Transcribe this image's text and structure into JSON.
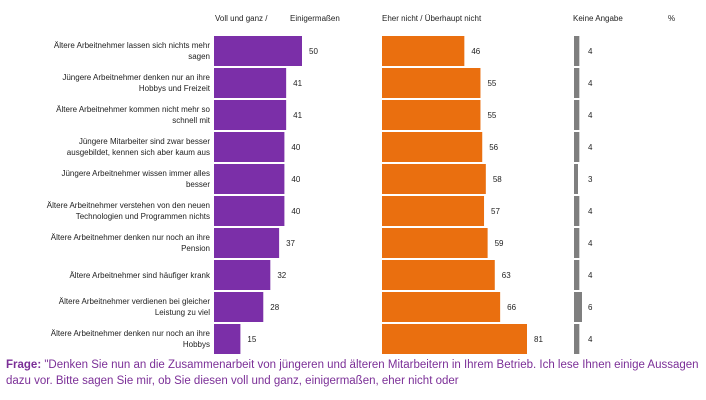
{
  "headers": {
    "voll": "Voll und ganz /",
    "einiger": "Einigermaßen",
    "eher": "Eher nicht / Überhaupt nicht",
    "keine": "Keine Angabe",
    "pct": "%"
  },
  "colors": {
    "agree": "#7b2fa8",
    "disagree": "#ea6f0f",
    "noanswer": "#7f7f7f",
    "question": "#7b2f97"
  },
  "chart_data": {
    "type": "bar",
    "orientation": "horizontal",
    "unit": "%",
    "categories": [
      [
        "Ältere Arbeitnehmer lassen sich nichts mehr",
        "sagen"
      ],
      [
        "Jüngere Arbeitnehmer denken nur an ihre",
        "Hobbys und Freizeit"
      ],
      [
        "Ältere Arbeitnehmer kommen nicht mehr so",
        "schnell mit"
      ],
      [
        "Jüngere Mitarbeiter sind zwar besser",
        "ausgebildet, kennen sich aber kaum aus"
      ],
      [
        "Jüngere Arbeitnehmer wissen immer alles",
        "besser"
      ],
      [
        "Ältere Arbeitnehmer verstehen von den neuen",
        "Technologien und Programmen nichts"
      ],
      [
        "Ältere Arbeitnehmer denken nur noch an ihre",
        "Pension"
      ],
      [
        "Ältere Arbeitnehmer sind häufiger krank"
      ],
      [
        "Ältere Arbeitnehmer verdienen bei gleicher",
        "Leistung zu viel"
      ],
      [
        "Ältere Arbeitnehmer denken nur noch an ihre",
        "Hobbys"
      ]
    ],
    "series": [
      {
        "name": "Voll und ganz / Einigermaßen",
        "values": [
          50,
          41,
          41,
          40,
          40,
          40,
          37,
          32,
          28,
          15
        ]
      },
      {
        "name": "Eher nicht / Überhaupt nicht",
        "values": [
          46,
          55,
          55,
          56,
          58,
          57,
          59,
          63,
          66,
          81
        ]
      },
      {
        "name": "Keine Angabe",
        "values": [
          4,
          4,
          4,
          4,
          3,
          4,
          4,
          4,
          6,
          4
        ]
      }
    ]
  },
  "question": {
    "label": "Frage:",
    "text": " \"Denken Sie nun an die Zusammenarbeit von jüngeren und älteren Mitarbeitern in Ihrem Betrieb. Ich lese Ihnen einige Aussagen dazu vor. Bitte sagen Sie mir, ob Sie diesen voll und ganz, einigermaßen, eher nicht oder"
  }
}
